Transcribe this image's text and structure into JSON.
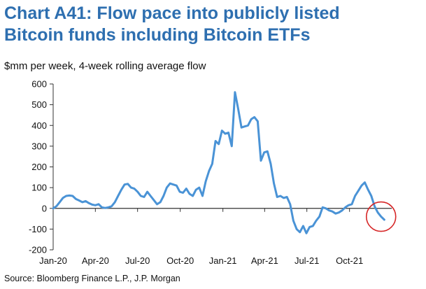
{
  "title_lines": [
    "Chart A41: Flow pace into publicly listed",
    "Bitcoin funds including Bitcoin ETFs"
  ],
  "subtitle": "$mm per week, 4-week rolling average flow",
  "source": "Source: Bloomberg Finance L.P., J.P. Morgan",
  "colors": {
    "title": "#2e6fb0",
    "line": "#4a93d6",
    "highlight_circle": "#d62728"
  },
  "chart_data": {
    "type": "line",
    "title": "Chart A41: Flow pace into publicly listed Bitcoin funds including Bitcoin ETFs",
    "ylabel": "$mm per week, 4-week rolling average flow",
    "xlabel": "",
    "ylim": [
      -200,
      600
    ],
    "yticks": [
      600,
      500,
      400,
      300,
      200,
      100,
      0,
      -100,
      -200
    ],
    "xtick_labels": [
      "Jan-20",
      "Apr-20",
      "Jul-20",
      "Oct-20",
      "Jan-21",
      "Apr-21",
      "Jul-21",
      "Oct-21"
    ],
    "xtick_dates": [
      "2020-01-01",
      "2020-04-01",
      "2020-07-01",
      "2020-10-01",
      "2021-01-01",
      "2021-04-01",
      "2021-07-01",
      "2021-10-01"
    ],
    "xlim": [
      "2020-01-01",
      "2021-12-31"
    ],
    "grid": false,
    "series": [
      {
        "values": [
          [
            "2020-01-01",
            0
          ],
          [
            "2020-01-08",
            10
          ],
          [
            "2020-01-15",
            30
          ],
          [
            "2020-01-22",
            50
          ],
          [
            "2020-01-29",
            60
          ],
          [
            "2020-02-05",
            62
          ],
          [
            "2020-02-12",
            60
          ],
          [
            "2020-02-19",
            45
          ],
          [
            "2020-02-26",
            38
          ],
          [
            "2020-03-04",
            30
          ],
          [
            "2020-03-11",
            35
          ],
          [
            "2020-03-18",
            25
          ],
          [
            "2020-03-25",
            18
          ],
          [
            "2020-04-01",
            15
          ],
          [
            "2020-04-08",
            20
          ],
          [
            "2020-04-15",
            5
          ],
          [
            "2020-04-22",
            2
          ],
          [
            "2020-04-29",
            5
          ],
          [
            "2020-05-06",
            10
          ],
          [
            "2020-05-13",
            30
          ],
          [
            "2020-05-20",
            60
          ],
          [
            "2020-05-27",
            90
          ],
          [
            "2020-06-03",
            115
          ],
          [
            "2020-06-10",
            118
          ],
          [
            "2020-06-17",
            100
          ],
          [
            "2020-06-24",
            95
          ],
          [
            "2020-07-01",
            80
          ],
          [
            "2020-07-08",
            60
          ],
          [
            "2020-07-15",
            55
          ],
          [
            "2020-07-22",
            80
          ],
          [
            "2020-07-29",
            60
          ],
          [
            "2020-08-05",
            40
          ],
          [
            "2020-08-12",
            20
          ],
          [
            "2020-08-19",
            30
          ],
          [
            "2020-08-26",
            60
          ],
          [
            "2020-09-02",
            100
          ],
          [
            "2020-09-09",
            120
          ],
          [
            "2020-09-16",
            115
          ],
          [
            "2020-09-23",
            110
          ],
          [
            "2020-09-30",
            80
          ],
          [
            "2020-10-07",
            75
          ],
          [
            "2020-10-14",
            95
          ],
          [
            "2020-10-21",
            70
          ],
          [
            "2020-10-28",
            60
          ],
          [
            "2020-11-04",
            90
          ],
          [
            "2020-11-11",
            100
          ],
          [
            "2020-11-18",
            60
          ],
          [
            "2020-11-25",
            130
          ],
          [
            "2020-12-02",
            180
          ],
          [
            "2020-12-09",
            215
          ],
          [
            "2020-12-16",
            325
          ],
          [
            "2020-12-23",
            310
          ],
          [
            "2020-12-30",
            375
          ],
          [
            "2021-01-06",
            360
          ],
          [
            "2021-01-13",
            365
          ],
          [
            "2021-01-20",
            300
          ],
          [
            "2021-01-27",
            560
          ],
          [
            "2021-02-03",
            480
          ],
          [
            "2021-02-10",
            390
          ],
          [
            "2021-02-17",
            395
          ],
          [
            "2021-02-24",
            400
          ],
          [
            "2021-03-03",
            430
          ],
          [
            "2021-03-10",
            440
          ],
          [
            "2021-03-17",
            420
          ],
          [
            "2021-03-24",
            230
          ],
          [
            "2021-03-31",
            270
          ],
          [
            "2021-04-07",
            275
          ],
          [
            "2021-04-14",
            215
          ],
          [
            "2021-04-21",
            120
          ],
          [
            "2021-04-28",
            55
          ],
          [
            "2021-05-05",
            60
          ],
          [
            "2021-05-12",
            50
          ],
          [
            "2021-05-19",
            55
          ],
          [
            "2021-05-26",
            20
          ],
          [
            "2021-06-02",
            -60
          ],
          [
            "2021-06-09",
            -100
          ],
          [
            "2021-06-16",
            -115
          ],
          [
            "2021-06-23",
            -85
          ],
          [
            "2021-06-30",
            -120
          ],
          [
            "2021-07-07",
            -90
          ],
          [
            "2021-07-14",
            -85
          ],
          [
            "2021-07-21",
            -60
          ],
          [
            "2021-07-28",
            -40
          ],
          [
            "2021-08-04",
            5
          ],
          [
            "2021-08-11",
            0
          ],
          [
            "2021-08-18",
            -10
          ],
          [
            "2021-08-25",
            -15
          ],
          [
            "2021-09-01",
            -25
          ],
          [
            "2021-09-08",
            -20
          ],
          [
            "2021-09-15",
            -10
          ],
          [
            "2021-09-22",
            5
          ],
          [
            "2021-09-29",
            15
          ],
          [
            "2021-10-06",
            20
          ],
          [
            "2021-10-13",
            60
          ],
          [
            "2021-10-20",
            85
          ],
          [
            "2021-10-27",
            110
          ],
          [
            "2021-11-03",
            125
          ],
          [
            "2021-11-10",
            90
          ],
          [
            "2021-11-17",
            60
          ],
          [
            "2021-11-24",
            10
          ],
          [
            "2021-12-01",
            -20
          ],
          [
            "2021-12-08",
            -40
          ],
          [
            "2021-12-15",
            -55
          ]
        ]
      }
    ],
    "annotations": [
      {
        "type": "circle",
        "at": [
          "2021-12-08",
          -40
        ]
      }
    ]
  }
}
